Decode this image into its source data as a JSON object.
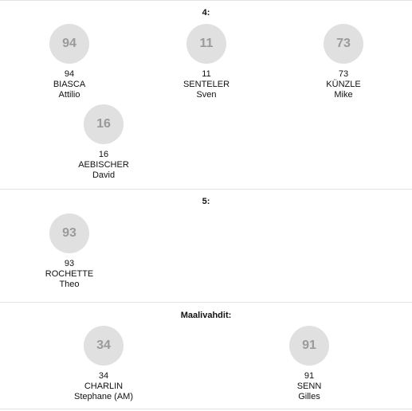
{
  "groups": [
    {
      "title": "4:",
      "players": [
        {
          "number": "94",
          "last": "BIASCA",
          "first": "Attilio"
        },
        {
          "number": "11",
          "last": "SENTELER",
          "first": "Sven"
        },
        {
          "number": "73",
          "last": "KÜNZLE",
          "first": "Mike"
        },
        {
          "number": "16",
          "last": "AEBISCHER",
          "first": "David"
        }
      ]
    },
    {
      "title": "5:",
      "players": [
        {
          "number": "93",
          "last": "ROCHETTE",
          "first": "Theo"
        }
      ]
    },
    {
      "title": "Maalivahdit:",
      "players": [
        {
          "number": "34",
          "last": "CHARLIN",
          "first": "Stephane (AM)"
        },
        {
          "number": "91",
          "last": "SENN",
          "first": "Gilles"
        }
      ]
    }
  ]
}
